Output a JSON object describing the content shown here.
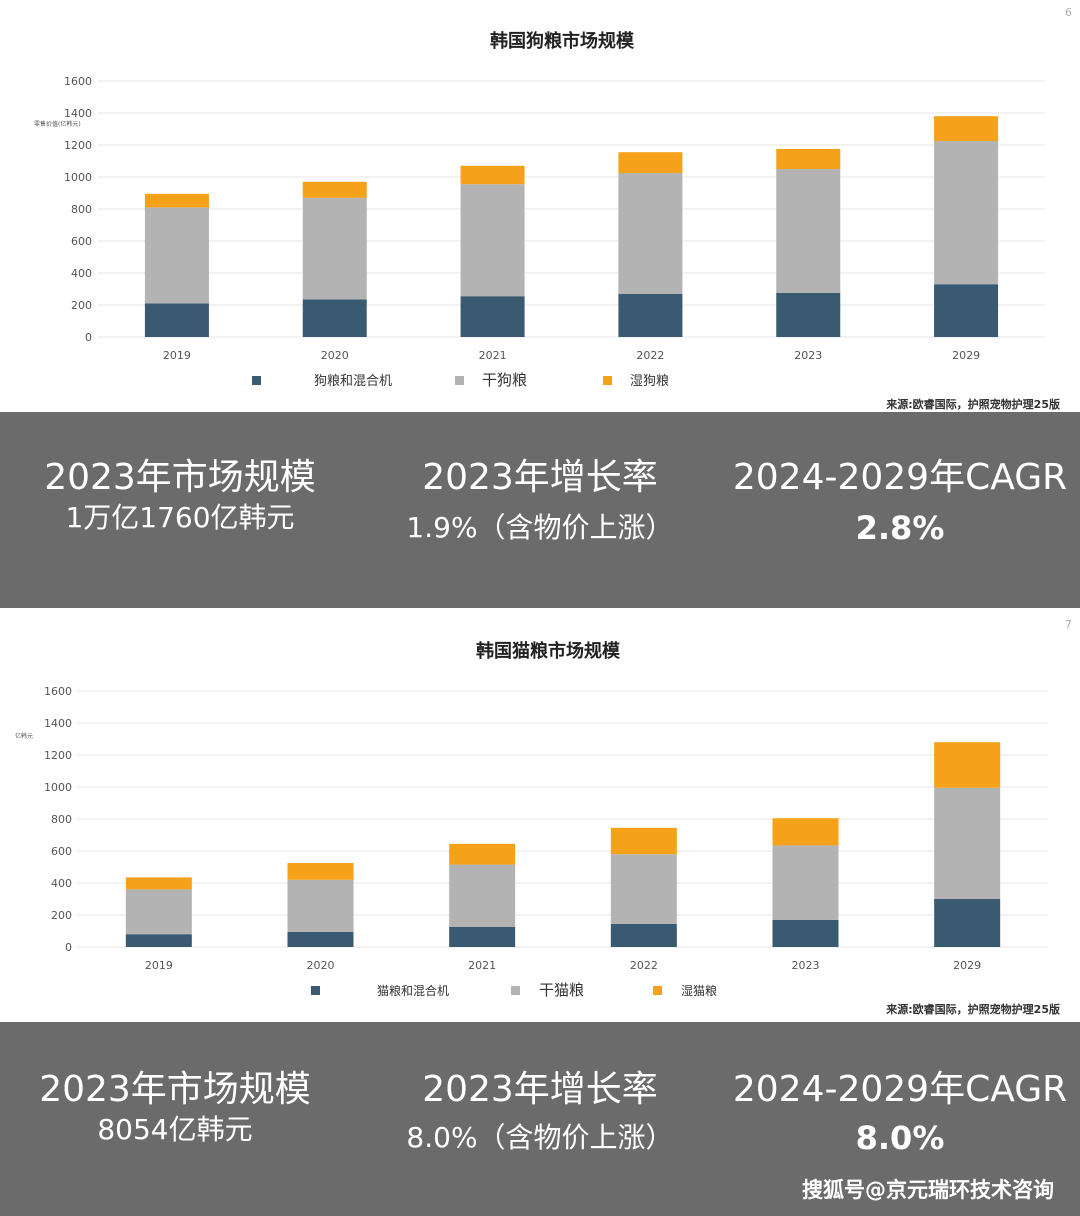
{
  "dog": {
    "page_num": "6",
    "source": "来源:欧睿国际，护照宠物护理25版",
    "ylabel_small": "零售价值(亿韩元)",
    "stats": [
      {
        "title": "2023年市场规模",
        "value": "1万亿1760亿韩元"
      },
      {
        "title": "2023年增长率",
        "value": "1.9%（含物价上涨）"
      },
      {
        "title": "2024-2029年CAGR",
        "value": "2.8%"
      }
    ]
  },
  "cat": {
    "page_num": "7",
    "source": "来源:欧睿国际，护照宠物护理25版",
    "ylabel_small": "亿韩元",
    "stats": [
      {
        "title": "2023年市场规模",
        "value": "8054亿韩元"
      },
      {
        "title": "2023年增长率",
        "value": "8.0%（含物价上涨）"
      },
      {
        "title": "2024-2029年CAGR",
        "value": "8.0%"
      }
    ]
  },
  "watermark": "搜狐号@京元瑞环技术咨询",
  "colors": {
    "treats": "#3a5a72",
    "dry": "#b3b3b3",
    "wet": "#f5a11a",
    "grid": "#e4e4e4",
    "panel": "#6b6b6b"
  },
  "chart_data": [
    {
      "type": "bar",
      "stacked": true,
      "title": "韩国狗粮市场规模",
      "categories": [
        "2019",
        "2020",
        "2021",
        "2022",
        "2023",
        "2029"
      ],
      "series": [
        {
          "name": "狗粮和混合机",
          "values": [
            210,
            235,
            255,
            270,
            275,
            330
          ]
        },
        {
          "name": "干狗粮",
          "values": [
            600,
            635,
            700,
            755,
            775,
            895
          ]
        },
        {
          "name": "湿狗粮",
          "values": [
            85,
            100,
            115,
            130,
            125,
            155
          ]
        }
      ],
      "yticks": [
        0,
        200,
        400,
        600,
        800,
        1000,
        1200,
        1400,
        1600
      ],
      "ylim": [
        0,
        1600
      ],
      "grid": true,
      "legend": "bottom"
    },
    {
      "type": "bar",
      "stacked": true,
      "title": "韩国猫粮市场规模",
      "categories": [
        "2019",
        "2020",
        "2021",
        "2022",
        "2023",
        "2029"
      ],
      "series": [
        {
          "name": "猫粮和混合机",
          "values": [
            80,
            95,
            125,
            145,
            170,
            300
          ]
        },
        {
          "name": "干猫粮",
          "values": [
            280,
            325,
            390,
            435,
            465,
            695
          ]
        },
        {
          "name": "湿猫粮",
          "values": [
            75,
            105,
            130,
            165,
            170,
            285
          ]
        }
      ],
      "yticks": [
        0,
        200,
        400,
        600,
        800,
        1000,
        1200,
        1400,
        1600
      ],
      "ylim": [
        0,
        1600
      ],
      "grid": true,
      "legend": "bottom"
    }
  ]
}
